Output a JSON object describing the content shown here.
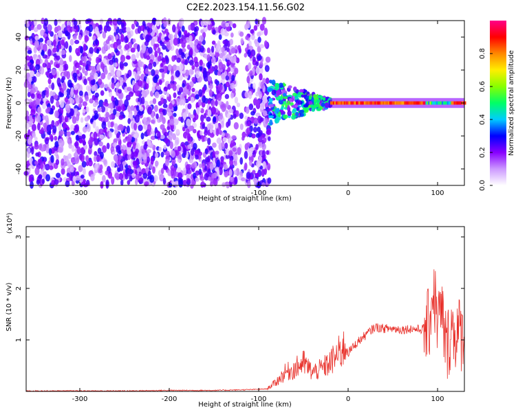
{
  "figure_title": "C2E2.2023.154.11.56.G02",
  "chart_data": [
    {
      "type": "heatmap",
      "xlabel": "Height of straight line (km)",
      "ylabel": "Frequency (Hz)",
      "xlim": [
        -360,
        130
      ],
      "ylim": [
        -50,
        50
      ],
      "xticks": [
        -300,
        -200,
        -100,
        0,
        100
      ],
      "yticks": [
        -40,
        -20,
        0,
        20,
        40
      ],
      "colorbar": {
        "label": "Normalized spectral amplitude",
        "range": [
          0,
          1
        ],
        "ticks": [
          0.0,
          0.2,
          0.4,
          0.6,
          0.8
        ],
        "colormap": [
          "#ffffff",
          "#cc99ff",
          "#8800ff",
          "#0000ff",
          "#00ccff",
          "#00ff66",
          "#88ff00",
          "#ffee00",
          "#ff8800",
          "#ff0000",
          "#ff0088"
        ]
      },
      "regions": [
        {
          "x_range": [
            -360,
            -88
          ],
          "description": "broadband speckle",
          "amplitude": 0.15
        },
        {
          "x_range": [
            -88,
            -20
          ],
          "description": "transition",
          "amplitude": 0.35
        },
        {
          "x_range": [
            -20,
            130
          ],
          "description": "narrow line near 0 Hz",
          "amplitude": 0.9
        }
      ]
    },
    {
      "type": "line",
      "xlabel": "Height of straight line (km)",
      "ylabel": "SNR (10 * v/v)",
      "yunit": "(x10⁴)",
      "xlim": [
        -360,
        130
      ],
      "ylim": [
        0,
        3.2
      ],
      "xticks": [
        -300,
        -200,
        -100,
        0,
        100
      ],
      "yticks": [
        1,
        2,
        3
      ],
      "color": "#e8302a",
      "series": [
        {
          "x": [
            -360,
            -300,
            -250,
            -200,
            -150,
            -120,
            -100,
            -90,
            -80,
            -70,
            -60,
            -50,
            -40,
            -30,
            -20,
            -10,
            0,
            10,
            20,
            30,
            40,
            50,
            60,
            70,
            80,
            90,
            95,
            100,
            105,
            110,
            115,
            120,
            130
          ],
          "values": [
            0.01,
            0.01,
            0.01,
            0.02,
            0.02,
            0.03,
            0.04,
            0.05,
            0.15,
            0.3,
            0.35,
            0.45,
            0.3,
            0.35,
            0.45,
            0.6,
            0.75,
            0.95,
            1.1,
            1.25,
            1.22,
            1.22,
            1.2,
            1.22,
            1.2,
            1.25,
            2.0,
            1.4,
            1.5,
            0.8,
            1.2,
            1.15,
            1.1
          ]
        }
      ]
    }
  ]
}
